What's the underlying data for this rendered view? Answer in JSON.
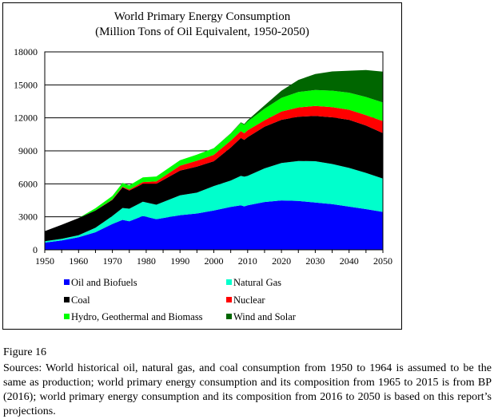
{
  "chart_data": {
    "type": "area",
    "stacked": true,
    "title": "World Primary Energy Consumption",
    "subtitle": "(Million Tons of Oil Equivalent, 1950-2050)",
    "xlabel": "",
    "ylabel": "",
    "xlim": [
      1950,
      2050
    ],
    "ylim": [
      0,
      18000
    ],
    "x_ticks": [
      "1950",
      "1960",
      "1970",
      "1980",
      "1990",
      "2000",
      "2010",
      "2020",
      "2030",
      "2040",
      "2050"
    ],
    "y_ticks": [
      "0",
      "3000",
      "6000",
      "9000",
      "12000",
      "15000",
      "18000"
    ],
    "grid": "horizontal",
    "legend_position": "bottom",
    "x": [
      1950,
      1955,
      1960,
      1965,
      1970,
      1973,
      1975,
      1979,
      1983,
      1990,
      1995,
      2000,
      2005,
      2008,
      2009,
      2010,
      2015,
      2020,
      2025,
      2030,
      2035,
      2040,
      2045,
      2050
    ],
    "series": [
      {
        "name": "Oil and Biofuels",
        "color": "#0000FF",
        "values": [
          650,
          850,
          1140,
          1600,
          2350,
          2720,
          2600,
          3080,
          2790,
          3150,
          3300,
          3570,
          3900,
          4050,
          3950,
          4050,
          4350,
          4490,
          4450,
          4300,
          4150,
          3930,
          3700,
          3450
        ]
      },
      {
        "name": "Natural Gas",
        "color": "#00FFCC",
        "values": [
          130,
          150,
          190,
          400,
          730,
          1080,
          1140,
          1290,
          1310,
          1800,
          1900,
          2230,
          2400,
          2670,
          2700,
          2670,
          3050,
          3400,
          3630,
          3760,
          3650,
          3520,
          3300,
          3030
        ]
      },
      {
        "name": "Coal",
        "color": "#000000",
        "values": [
          920,
          1280,
          1560,
          1570,
          1460,
          1880,
          1650,
          1630,
          1900,
          2250,
          2370,
          2260,
          3000,
          3450,
          3350,
          3520,
          3800,
          3930,
          4020,
          4120,
          4250,
          4370,
          4300,
          4130
        ]
      },
      {
        "name": "Nuclear",
        "color": "#FF0000",
        "values": [
          0,
          0,
          0,
          10,
          40,
          60,
          90,
          160,
          220,
          450,
          530,
          580,
          620,
          620,
          600,
          630,
          580,
          750,
          850,
          900,
          920,
          920,
          950,
          1090
        ]
      },
      {
        "name": "Hydro, Geothermal and Biomass",
        "color": "#00FF00",
        "values": [
          0,
          0,
          0,
          200,
          320,
          350,
          380,
          420,
          450,
          500,
          550,
          600,
          650,
          750,
          760,
          800,
          1050,
          1250,
          1400,
          1450,
          1500,
          1550,
          1650,
          1700
        ]
      },
      {
        "name": "Wind and Solar",
        "color": "#006600",
        "values": [
          0,
          0,
          0,
          0,
          0,
          0,
          0,
          0,
          0,
          0,
          0,
          10,
          30,
          60,
          80,
          120,
          300,
          650,
          1100,
          1450,
          1750,
          2000,
          2450,
          2800
        ]
      }
    ]
  },
  "caption": {
    "figure_label": "Figure 16",
    "sources": "Sources: World historical oil, natural gas, and coal consumption from 1950 to 1964 is assumed to be the same as production; world primary energy consumption and its composition from 1965 to 2015 is from BP (2016); world primary energy consumption and its composition from 2016 to 2050 is based on this report’s projections."
  }
}
